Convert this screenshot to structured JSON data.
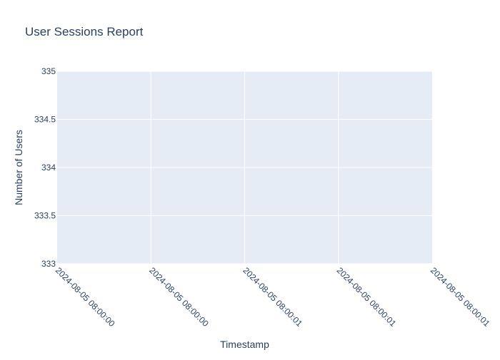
{
  "chart_data": {
    "type": "line",
    "title": "User Sessions Report",
    "xlabel": "Timestamp",
    "ylabel": "Number of Users",
    "x_ticks": [
      "2024-08-05 08:00:00",
      "2024-08-05 08:00:00",
      "2024-08-05 08:00:01",
      "2024-08-05 08:00:01",
      "2024-08-05 08:00:01"
    ],
    "y_ticks": [
      "333",
      "333.5",
      "334",
      "334.5",
      "335"
    ],
    "y_tick_values": [
      333,
      333.5,
      334,
      334.5,
      335
    ],
    "ylim": [
      333,
      335
    ],
    "series": [],
    "grid": true,
    "legend": "none"
  },
  "colors": {
    "plot_background": "#e5ecf6",
    "grid": "#ffffff",
    "text": "#2a3f5f",
    "paper": "#ffffff"
  }
}
